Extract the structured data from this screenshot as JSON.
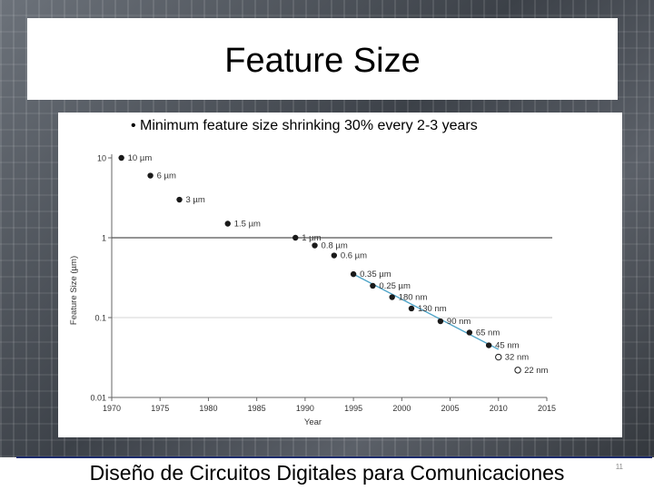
{
  "slide": {
    "title": "Feature Size",
    "bullet": "• Minimum feature size shrinking 30% every 2-3 years",
    "footer": "Diseño de Circuitos Digitales para Comunicaciones",
    "page_number": "11"
  },
  "chart_data": {
    "type": "scatter",
    "xlabel": "Year",
    "ylabel": "Feature Size (µm)",
    "xlim": [
      1970,
      2015
    ],
    "ylim": [
      0.01,
      10
    ],
    "y_scale": "log",
    "x_ticks": [
      1970,
      1975,
      1980,
      1985,
      1990,
      1995,
      2000,
      2005,
      2010,
      2015
    ],
    "y_ticks": [
      {
        "value": 10,
        "label": "10"
      },
      {
        "value": 1,
        "label": "1"
      },
      {
        "value": 0.1,
        "label": "0.1"
      },
      {
        "value": 0.01,
        "label": "0.01"
      }
    ],
    "horizontal_lines": [
      1,
      0.1
    ],
    "points": [
      {
        "x": 1971,
        "y": 10,
        "label": "10 µm",
        "filled": true
      },
      {
        "x": 1974,
        "y": 6,
        "label": "6 µm",
        "filled": true
      },
      {
        "x": 1977,
        "y": 3,
        "label": "3 µm",
        "filled": true
      },
      {
        "x": 1982,
        "y": 1.5,
        "label": "1.5 µm",
        "filled": true
      },
      {
        "x": 1989,
        "y": 1,
        "label": "1 µm",
        "filled": true
      },
      {
        "x": 1991,
        "y": 0.8,
        "label": "0.8 µm",
        "filled": true
      },
      {
        "x": 1993,
        "y": 0.6,
        "label": "0.6 µm",
        "filled": true
      },
      {
        "x": 1995,
        "y": 0.35,
        "label": "0.35 µm",
        "filled": true
      },
      {
        "x": 1997,
        "y": 0.25,
        "label": "0.25 µm",
        "filled": true
      },
      {
        "x": 1999,
        "y": 0.18,
        "label": "180 nm",
        "filled": true
      },
      {
        "x": 2001,
        "y": 0.13,
        "label": "130 nm",
        "filled": true
      },
      {
        "x": 2004,
        "y": 0.09,
        "label": "90 nm",
        "filled": true
      },
      {
        "x": 2007,
        "y": 0.065,
        "label": "65 nm",
        "filled": true
      },
      {
        "x": 2009,
        "y": 0.045,
        "label": "45 nm",
        "filled": true
      },
      {
        "x": 2010,
        "y": 0.032,
        "label": "32 nm",
        "filled": false
      },
      {
        "x": 2012,
        "y": 0.022,
        "label": "22 nm",
        "filled": false
      }
    ],
    "trend_line": {
      "x": [
        1995,
        2010
      ],
      "y": [
        0.35,
        0.04
      ],
      "color": "#4da3c7"
    },
    "point_color": "#1a1a1a",
    "grid_line_color": "#555555",
    "axis_color": "#666666"
  }
}
